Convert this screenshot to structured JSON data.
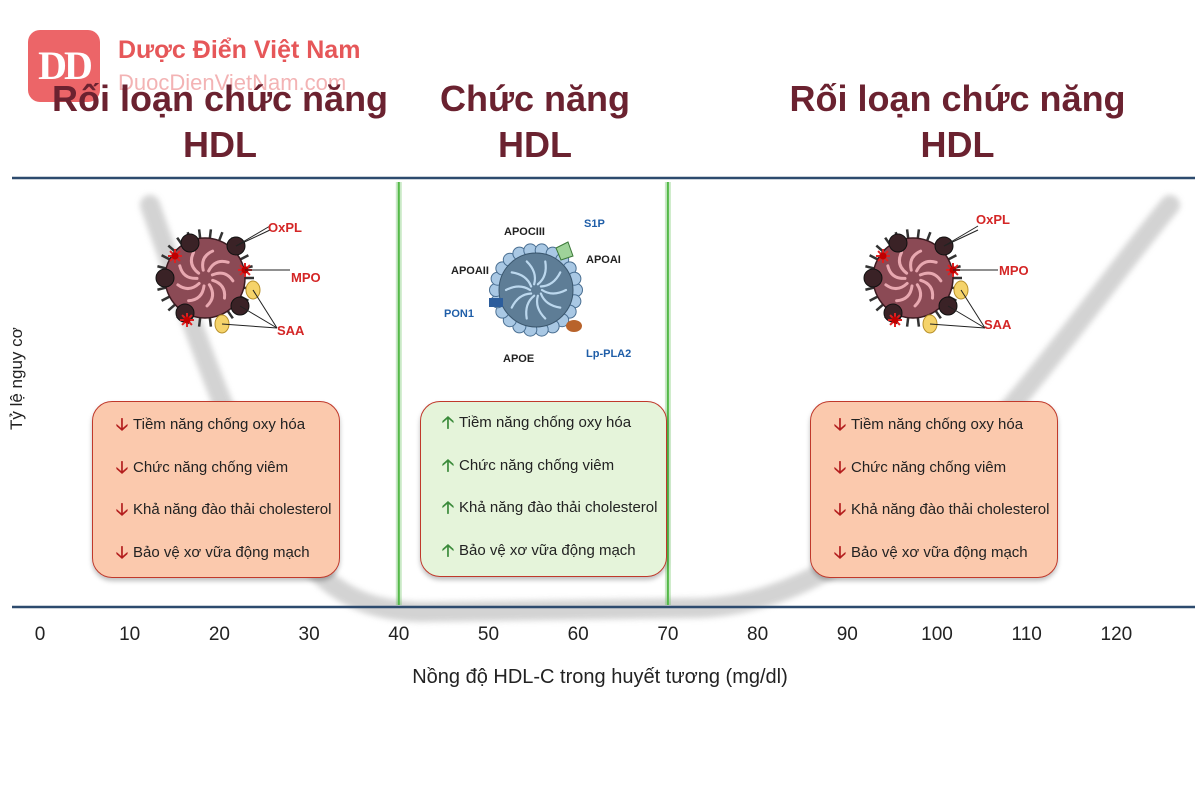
{
  "watermark": {
    "logo_text": "DD",
    "site_name": "Dược Điển Việt Nam",
    "site_url": "DuocDienVietNam.com"
  },
  "headers": {
    "left": {
      "line1": "Rối loạn chức năng",
      "line2": "HDL"
    },
    "middle": {
      "line1": "Chức năng",
      "line2": "HDL"
    },
    "right": {
      "line1": "Rối loạn chức năng",
      "line2": "HDL"
    }
  },
  "left_panel": {
    "particle_labels": [
      "OxPL",
      "MPO",
      "SAA"
    ],
    "items": [
      "Tiềm năng chống oxy hóa",
      "Chức năng chống viêm",
      "Khả năng đào thải cholesterol",
      "Bảo vệ xơ vữa động mạch"
    ]
  },
  "middle_panel": {
    "particle_labels": {
      "apociii": "APOCIII",
      "s1p": "S1P",
      "apoaii": "APOAII",
      "apoai": "APOAI",
      "pon1": "PON1",
      "apoe": "APOE",
      "lppla2": "Lp-PLA2"
    },
    "items": [
      "Tiềm năng chống oxy hóa",
      "Chức năng chống viêm",
      "Khả năng đào thải cholesterol",
      "Bảo vệ xơ vữa động mạch"
    ]
  },
  "right_panel": {
    "particle_labels": [
      "OxPL",
      "MPO",
      "SAA"
    ],
    "items": [
      "Tiềm năng chống oxy hóa",
      "Chức năng chống viêm",
      "Khả năng đào thải cholesterol",
      "Bảo vệ xơ vữa động mạch"
    ]
  },
  "axes": {
    "y_label": "Tỷ lệ nguy cơ",
    "x_label": "Nồng độ HDL-C trong huyết tương (mg/dl)",
    "x_ticks": [
      "0",
      "10",
      "20",
      "30",
      "40",
      "50",
      "60",
      "70",
      "80",
      "90",
      "100",
      "110",
      "120"
    ]
  },
  "optimal_range": {
    "min": 40,
    "max": 70
  },
  "colors": {
    "header_text": "#6b2230",
    "axis_line": "#2d4b6e",
    "boundary_green": "#54b948",
    "box_red": "#fbc9ad",
    "box_green": "#e5f4da",
    "arrow_down": "#b31d1d",
    "arrow_up": "#3a8a3a"
  },
  "icons": {
    "decrease": "down-arrow-icon",
    "increase": "up-arrow-icon"
  }
}
